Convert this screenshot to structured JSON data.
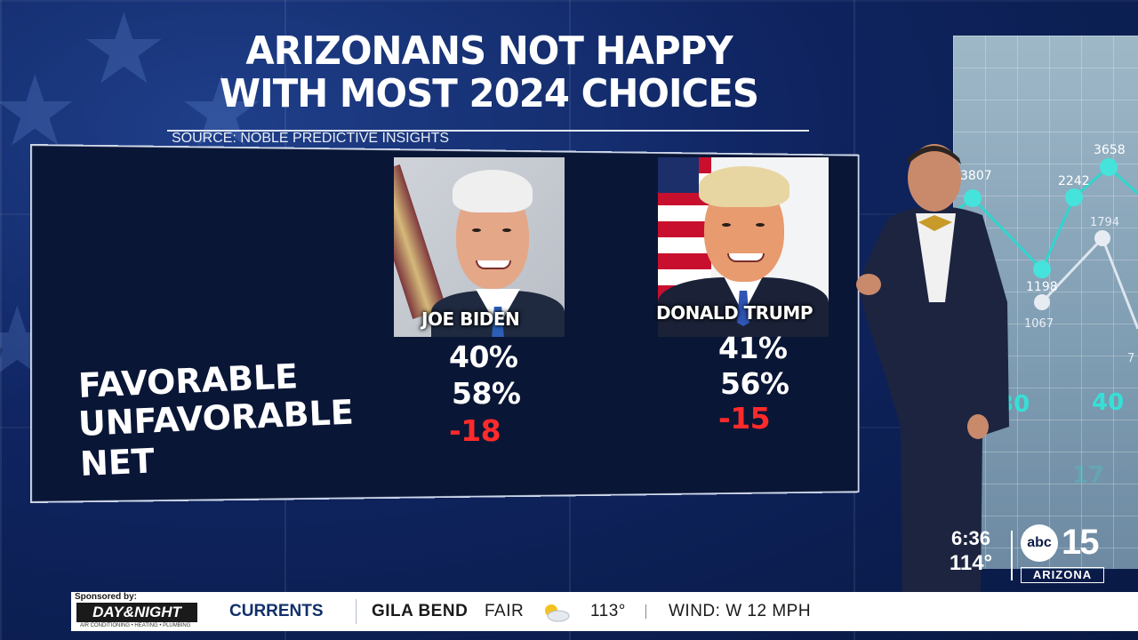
{
  "graphic": {
    "title_line1": "ARIZONANS NOT HAPPY",
    "title_line2": "WITH MOST 2024 CHOICES",
    "source": "SOURCE: NOBLE PREDICTIVE INSIGHTS",
    "rows": {
      "favorable": "FAVORABLE",
      "unfavorable": "UNFAVORABLE",
      "net": "NET"
    },
    "candidates": [
      {
        "name": "JOE BIDEN",
        "favorable": "40%",
        "unfavorable": "58%",
        "net": "-18"
      },
      {
        "name": "DONALD TRUMP",
        "favorable": "41%",
        "unfavorable": "56%",
        "net": "-15"
      }
    ],
    "net_color": "#ff2a2a"
  },
  "background_screen": {
    "labels": [
      "3807",
      "2242",
      "3658",
      "1198",
      "1794",
      "1067",
      "7"
    ],
    "axis": [
      "30",
      "40",
      "17"
    ]
  },
  "bug": {
    "time": "6:36",
    "temp": "114°",
    "logo_text": "abc",
    "logo_num": "15",
    "logo_state": "ARIZONA"
  },
  "ticker": {
    "sponsored_by": "Sponsored by:",
    "sponsor_name": "DAY&NIGHT",
    "sponsor_sub": "AIR CONDITIONING • HEATING • PLUMBING",
    "section": "CURRENTS",
    "location": "GILA BEND",
    "condition": "FAIR",
    "weather_icon": "partly-cloudy-icon",
    "temperature": "113°",
    "wind": "WIND: W 12 MPH"
  }
}
